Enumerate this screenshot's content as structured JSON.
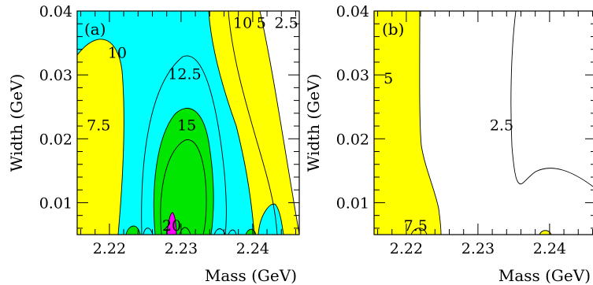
{
  "colors": {
    "yellow": "#ffff00",
    "cyan": "#00ffff",
    "green": "#00e600",
    "magenta": "#ff00ff",
    "white": "#ffffff",
    "line": "#000000"
  },
  "chart_data": [
    {
      "type": "contour",
      "panel_label": "(a)",
      "xlabel": "Mass (GeV)",
      "ylabel": "Width (GeV)",
      "xlim": [
        2.2155,
        2.2465
      ],
      "ylim": [
        0.005,
        0.04
      ],
      "x_ticks": [
        2.22,
        2.23,
        2.24
      ],
      "x_tick_labels": [
        "2.22",
        "2.23",
        "2.24"
      ],
      "y_ticks": [
        0.01,
        0.02,
        0.03,
        0.04
      ],
      "y_tick_labels": [
        "0.01",
        "0.02",
        "0.03",
        "0.04"
      ],
      "contour_levels": [
        2.5,
        5,
        7.5,
        10,
        12.5,
        15,
        20
      ],
      "contour_labels": [
        {
          "text": "10",
          "x": 2.2386,
          "y": 0.0382
        },
        {
          "text": "5",
          "x": 2.2412,
          "y": 0.0382
        },
        {
          "text": "2.5",
          "x": 2.2447,
          "y": 0.0382
        },
        {
          "text": "10",
          "x": 2.2211,
          "y": 0.0335
        },
        {
          "text": "12.5",
          "x": 2.2305,
          "y": 0.0302
        },
        {
          "text": "7.5",
          "x": 2.2185,
          "y": 0.0222
        },
        {
          "text": "15",
          "x": 2.2308,
          "y": 0.0222
        },
        {
          "text": "20",
          "x": 2.2287,
          "y": 0.0065
        }
      ],
      "grid": false
    },
    {
      "type": "contour",
      "panel_label": "(b)",
      "xlabel": "Mass (GeV)",
      "ylabel": "Width (GeV)",
      "xlim": [
        2.2155,
        2.2465
      ],
      "ylim": [
        0.005,
        0.04
      ],
      "x_ticks": [
        2.22,
        2.23,
        2.24
      ],
      "x_tick_labels": [
        "2.22",
        "2.23",
        "2.24"
      ],
      "y_ticks": [
        0.01,
        0.02,
        0.03,
        0.04
      ],
      "y_tick_labels": [
        "0.01",
        "0.02",
        "0.03",
        "0.04"
      ],
      "contour_levels": [
        2.5,
        5,
        7.5
      ],
      "contour_labels": [
        {
          "text": "5",
          "x": 2.2175,
          "y": 0.0295
        },
        {
          "text": "2.5",
          "x": 2.2333,
          "y": 0.0222
        },
        {
          "text": "7.5",
          "x": 2.2213,
          "y": 0.0065
        }
      ],
      "grid": false
    }
  ]
}
